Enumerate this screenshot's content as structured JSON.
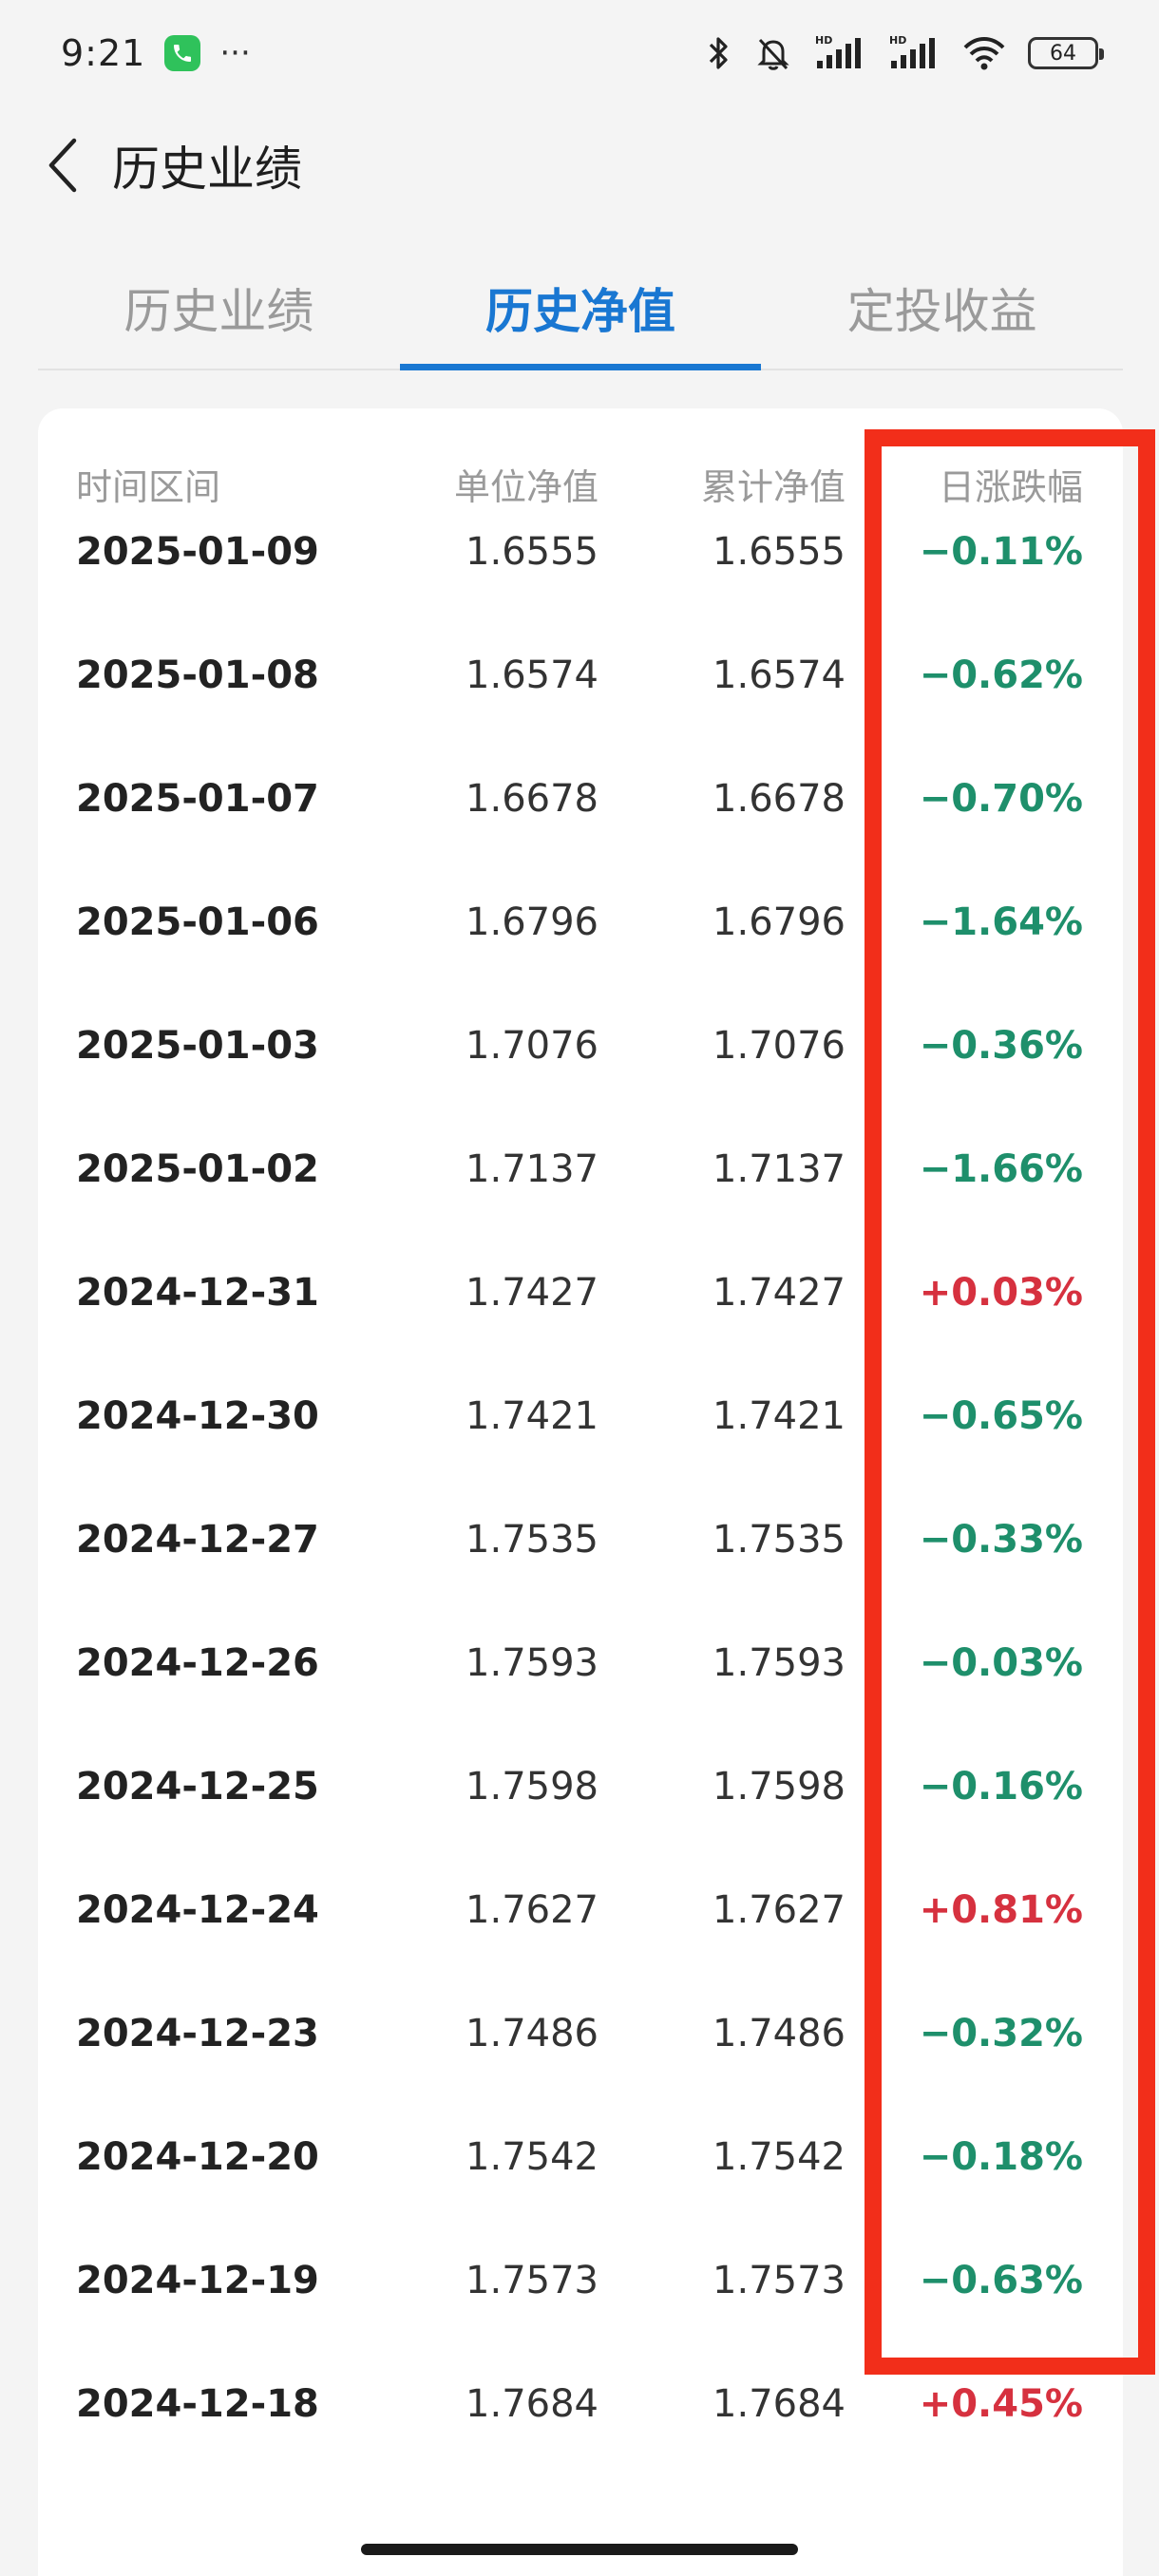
{
  "status_bar": {
    "time": "9:21",
    "dots": "···",
    "battery": "64"
  },
  "header": {
    "title": "历史业绩"
  },
  "tabs": [
    {
      "label": "历史业绩",
      "active": false
    },
    {
      "label": "历史净值",
      "active": true
    },
    {
      "label": "定投收益",
      "active": false
    }
  ],
  "table": {
    "columns": [
      "时间区间",
      "单位净值",
      "累计净值",
      "日涨跌幅"
    ],
    "rows": [
      {
        "date": "2025-01-09",
        "unit": "1.6555",
        "cum": "1.6555",
        "change": "−0.11%"
      },
      {
        "date": "2025-01-08",
        "unit": "1.6574",
        "cum": "1.6574",
        "change": "−0.62%"
      },
      {
        "date": "2025-01-07",
        "unit": "1.6678",
        "cum": "1.6678",
        "change": "−0.70%"
      },
      {
        "date": "2025-01-06",
        "unit": "1.6796",
        "cum": "1.6796",
        "change": "−1.64%"
      },
      {
        "date": "2025-01-03",
        "unit": "1.7076",
        "cum": "1.7076",
        "change": "−0.36%"
      },
      {
        "date": "2025-01-02",
        "unit": "1.7137",
        "cum": "1.7137",
        "change": "−1.66%"
      },
      {
        "date": "2024-12-31",
        "unit": "1.7427",
        "cum": "1.7427",
        "change": "+0.03%"
      },
      {
        "date": "2024-12-30",
        "unit": "1.7421",
        "cum": "1.7421",
        "change": "−0.65%"
      },
      {
        "date": "2024-12-27",
        "unit": "1.7535",
        "cum": "1.7535",
        "change": "−0.33%"
      },
      {
        "date": "2024-12-26",
        "unit": "1.7593",
        "cum": "1.7593",
        "change": "−0.03%"
      },
      {
        "date": "2024-12-25",
        "unit": "1.7598",
        "cum": "1.7598",
        "change": "−0.16%"
      },
      {
        "date": "2024-12-24",
        "unit": "1.7627",
        "cum": "1.7627",
        "change": "+0.81%"
      },
      {
        "date": "2024-12-23",
        "unit": "1.7486",
        "cum": "1.7486",
        "change": "−0.32%"
      },
      {
        "date": "2024-12-20",
        "unit": "1.7542",
        "cum": "1.7542",
        "change": "−0.18%"
      },
      {
        "date": "2024-12-19",
        "unit": "1.7573",
        "cum": "1.7573",
        "change": "−0.63%"
      },
      {
        "date": "2024-12-18",
        "unit": "1.7684",
        "cum": "1.7684",
        "change": "+0.45%"
      }
    ]
  },
  "colors": {
    "accent": "#1977d2",
    "negative": "#1e8f6b",
    "positive": "#d6313f",
    "highlight": "#f22e1a"
  },
  "icons": {
    "call": "phone-icon",
    "bluetooth": "bluetooth-icon",
    "mute": "bell-off-icon",
    "signal": "signal-icon",
    "wifi": "wifi-icon",
    "back": "chevron-left-icon"
  }
}
